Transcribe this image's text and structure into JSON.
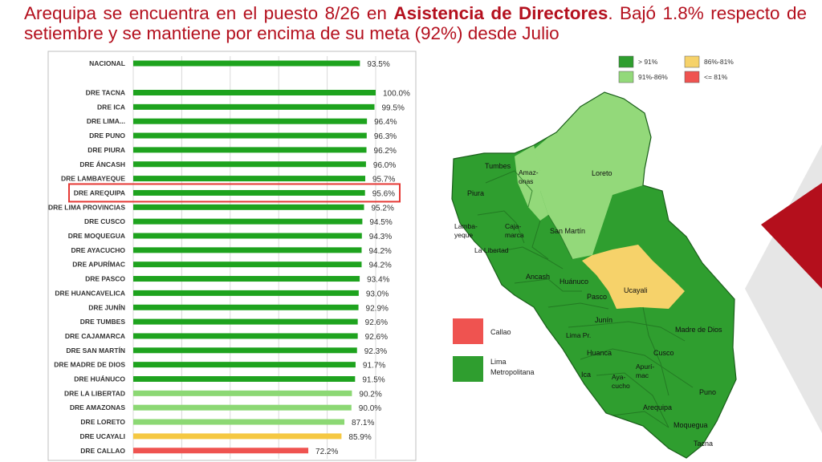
{
  "title": {
    "part1": "Arequipa se encuentra en el puesto 8/26 en ",
    "bold": "Asistencia de Directores",
    "part2": ". Bajó 1.8% respecto de setiembre y se mantiene por encima de su meta (92%) desde Julio"
  },
  "colors": {
    "green_dark": "#1ea31e",
    "green_light": "#8cd874",
    "yellow": "#f5c842",
    "red": "#ef5350",
    "map_dark": "#2f9e2f",
    "map_light": "#93d97a",
    "map_yellow": "#f6d26a",
    "title": "#b4101e",
    "highlight": "#e53935"
  },
  "chart_data": {
    "type": "bar",
    "orientation": "horizontal",
    "title": "",
    "xlim": [
      0,
      100
    ],
    "highlight": "DRE AREQUIPA",
    "categories": [
      "NACIONAL",
      "DRE TACNA",
      "DRE ICA",
      "DRE LIMA...",
      "DRE PUNO",
      "DRE PIURA",
      "DRE ÁNCASH",
      "DRE LAMBAYEQUE",
      "DRE AREQUIPA",
      "DRE LIMA PROVINCIAS",
      "DRE CUSCO",
      "DRE MOQUEGUA",
      "DRE AYACUCHO",
      "DRE APURÍMAC",
      "DRE PASCO",
      "DRE HUANCAVELICA",
      "DRE JUNÍN",
      "DRE TUMBES",
      "DRE CAJAMARCA",
      "DRE SAN MARTÍN",
      "DRE MADRE DE DIOS",
      "DRE HUÁNUCO",
      "DRE LA LIBERTAD",
      "DRE AMAZONAS",
      "DRE LORETO",
      "DRE UCAYALI",
      "DRE CALLAO"
    ],
    "values": [
      93.5,
      100.0,
      99.5,
      96.4,
      96.3,
      96.2,
      96.0,
      95.7,
      95.6,
      95.2,
      94.5,
      94.3,
      94.2,
      94.2,
      93.4,
      93.0,
      92.9,
      92.6,
      92.6,
      92.3,
      91.7,
      91.5,
      90.2,
      90.0,
      87.1,
      85.9,
      72.2
    ],
    "labels": [
      "93.5%",
      "100.0%",
      "99.5%",
      "96.4%",
      "96.3%",
      "96.2%",
      "96.0%",
      "95.7%",
      "95.6%",
      "95.2%",
      "94.5%",
      "94.3%",
      "94.2%",
      "94.2%",
      "93.4%",
      "93.0%",
      "92.9%",
      "92.6%",
      "92.6%",
      "92.3%",
      "91.7%",
      "91.5%",
      "90.2%",
      "90.0%",
      "87.1%",
      "85.9%",
      "72.2%"
    ],
    "color_keys": [
      "dark",
      "dark",
      "dark",
      "dark",
      "dark",
      "dark",
      "dark",
      "dark",
      "dark",
      "dark",
      "dark",
      "dark",
      "dark",
      "dark",
      "dark",
      "dark",
      "dark",
      "dark",
      "dark",
      "dark",
      "dark",
      "dark",
      "light",
      "light",
      "light",
      "yellow",
      "red"
    ]
  },
  "map": {
    "legend": [
      {
        "label": "> 91%",
        "key": "dark"
      },
      {
        "label": "86%-81%",
        "key": "yellow"
      },
      {
        "label": "91%-86%",
        "key": "light"
      },
      {
        "label": "<= 81%",
        "key": "red"
      }
    ],
    "box_legend": [
      {
        "label": "Callao",
        "key": "red"
      },
      {
        "label": "Lima Metropolitana",
        "key": "dark"
      }
    ],
    "regions": [
      "Tumbes",
      "Amaz-onas",
      "Loreto",
      "Piura",
      "Lamba-yeque",
      "Caja-marca",
      "San Martín",
      "La Libertad",
      "Ancash",
      "Huánuco",
      "Ucayali",
      "Pasco",
      "Junín",
      "Madre de Dios",
      "Lima Pr.",
      "Huanca",
      "Cusco",
      "Apurí-mac",
      "Ica",
      "Aya-cucho",
      "Puno",
      "Arequipa",
      "Moquegua",
      "Tacna"
    ]
  }
}
